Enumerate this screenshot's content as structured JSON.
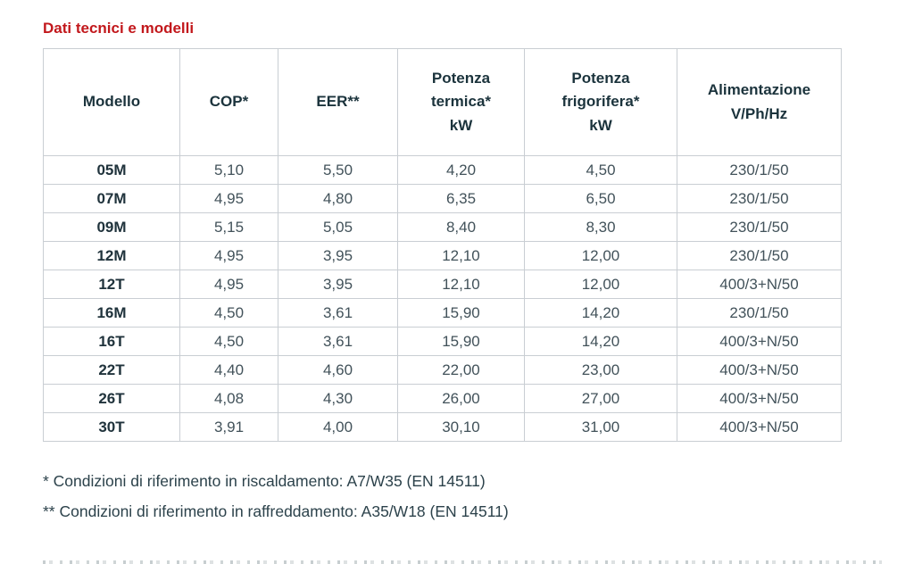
{
  "title": "Dati tecnici e modelli",
  "table": {
    "columns": [
      {
        "id": "modello",
        "label_lines": [
          "Modello"
        ]
      },
      {
        "id": "cop",
        "label_lines": [
          "COP*"
        ]
      },
      {
        "id": "eer",
        "label_lines": [
          "EER**"
        ]
      },
      {
        "id": "potenza-termica",
        "label_lines": [
          "Potenza",
          "termica*",
          "kW"
        ]
      },
      {
        "id": "potenza-frigorifera",
        "label_lines": [
          "Potenza",
          "frigorifera*",
          "kW"
        ]
      },
      {
        "id": "alimentazione",
        "label_lines": [
          "Alimentazione",
          "V/Ph/Hz"
        ]
      }
    ],
    "rows": [
      [
        "05M",
        "5,10",
        "5,50",
        "4,20",
        "4,50",
        "230/1/50"
      ],
      [
        "07M",
        "4,95",
        "4,80",
        "6,35",
        "6,50",
        "230/1/50"
      ],
      [
        "09M",
        "5,15",
        "5,05",
        "8,40",
        "8,30",
        "230/1/50"
      ],
      [
        "12M",
        "4,95",
        "3,95",
        "12,10",
        "12,00",
        "230/1/50"
      ],
      [
        "12T",
        "4,95",
        "3,95",
        "12,10",
        "12,00",
        "400/3+N/50"
      ],
      [
        "16M",
        "4,50",
        "3,61",
        "15,90",
        "14,20",
        "230/1/50"
      ],
      [
        "16T",
        "4,50",
        "3,61",
        "15,90",
        "14,20",
        "400/3+N/50"
      ],
      [
        "22T",
        "4,40",
        "4,60",
        "22,00",
        "23,00",
        "400/3+N/50"
      ],
      [
        "26T",
        "4,08",
        "4,30",
        "26,00",
        "27,00",
        "400/3+N/50"
      ],
      [
        "30T",
        "3,91",
        "4,00",
        "30,10",
        "31,00",
        "400/3+N/50"
      ]
    ]
  },
  "footnotes": {
    "line1": "* Condizioni di riferimento in riscaldamento: A7/W35 (EN 14511)",
    "line2": "** Condizioni di riferimento in raffreddamento: A35/W18 (EN 14511)"
  },
  "colors": {
    "title_red": "#c2181c",
    "header_text": "#1b333c",
    "cell_text": "#42525a",
    "border": "#c9ced3"
  }
}
